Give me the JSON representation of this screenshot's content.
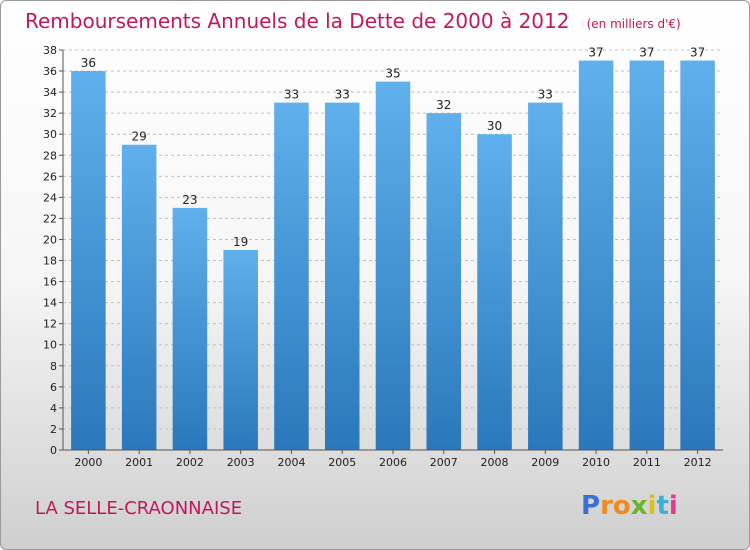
{
  "title": "Remboursements Annuels de la Dette de 2000 à 2012",
  "unit": "(en milliers d'€)",
  "place": "LA SELLE-CRAONNAISE",
  "brand": {
    "letters": [
      "P",
      "r",
      "o",
      "x",
      "i",
      "t",
      "i"
    ],
    "colors": [
      "#3b6fd8",
      "#f08a1c",
      "#f08a1c",
      "#6bb52a",
      "#d8c21a",
      "#3bb0d8",
      "#e23b8f"
    ]
  },
  "colors": {
    "bar_top": "#5fb0ec",
    "bar_bottom": "#2a78bb",
    "title": "#c2185b",
    "grid": "#c0c0c0"
  },
  "chart_data": {
    "type": "bar",
    "categories": [
      "2000",
      "2001",
      "2002",
      "2003",
      "2004",
      "2005",
      "2006",
      "2007",
      "2008",
      "2009",
      "2010",
      "2011",
      "2012"
    ],
    "values": [
      36,
      29,
      23,
      19,
      33,
      33,
      35,
      32,
      30,
      33,
      37,
      37,
      37
    ],
    "ylim": [
      0,
      38
    ],
    "yticks": [
      0,
      2,
      4,
      6,
      8,
      10,
      12,
      14,
      16,
      18,
      20,
      22,
      24,
      26,
      28,
      30,
      32,
      34,
      36,
      38
    ],
    "grid": true,
    "xlabel": "",
    "ylabel": ""
  }
}
